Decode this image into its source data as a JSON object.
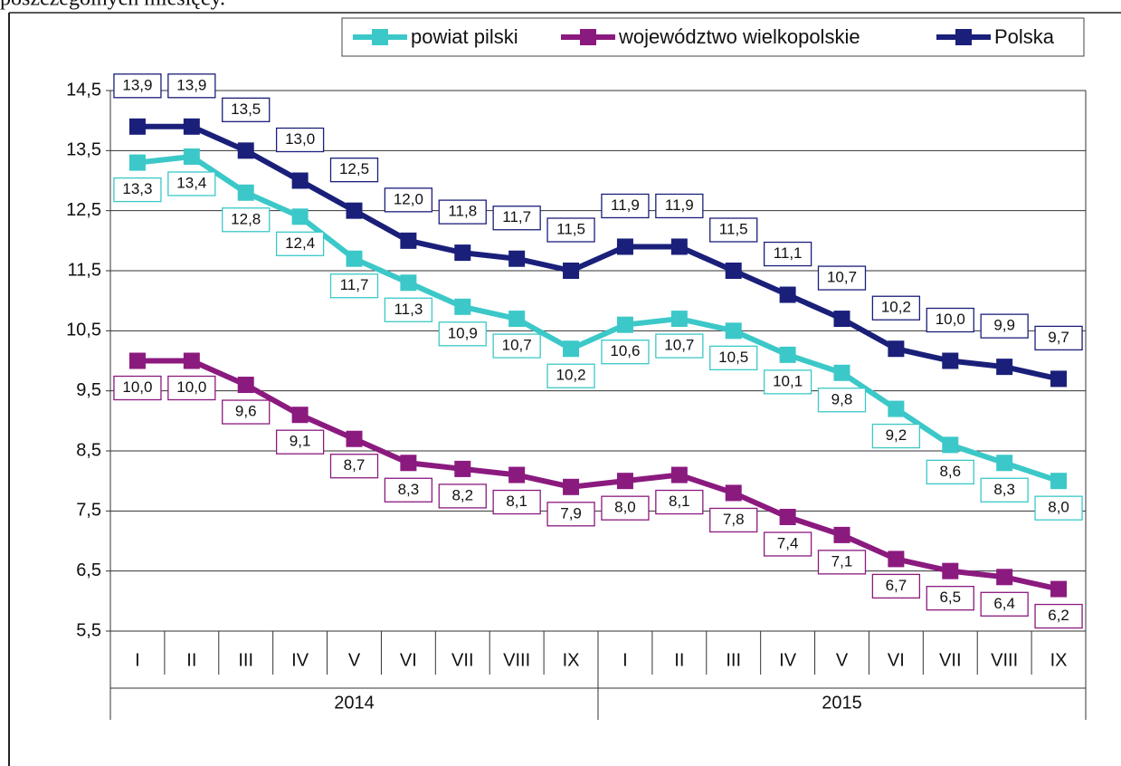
{
  "top_text": "poszczególnych miesięcy.",
  "chart_data": {
    "type": "line",
    "categories": [
      "I",
      "II",
      "III",
      "IV",
      "V",
      "VI",
      "VII",
      "VIII",
      "IX",
      "I",
      "II",
      "III",
      "IV",
      "V",
      "VI",
      "VII",
      "VIII",
      "IX"
    ],
    "groups": [
      "2014",
      "2015"
    ],
    "ylim": [
      5.5,
      14.5
    ],
    "yticks": [
      {
        "value": 5.5,
        "label": "5,5"
      },
      {
        "value": 6.5,
        "label": "6,5"
      },
      {
        "value": 7.5,
        "label": "7,5"
      },
      {
        "value": 8.5,
        "label": "8,5"
      },
      {
        "value": 9.5,
        "label": "9,5"
      },
      {
        "value": 10.5,
        "label": "10,5"
      },
      {
        "value": 11.5,
        "label": "11,5"
      },
      {
        "value": 12.5,
        "label": "12,5"
      },
      {
        "value": 13.5,
        "label": "13,5"
      },
      {
        "value": 14.5,
        "label": "14,5"
      }
    ],
    "grid": true,
    "legend": "top-right",
    "series": [
      {
        "name": "powiat pilski",
        "color": "#3cc8c8",
        "label_side": "below",
        "values": [
          13.3,
          13.4,
          12.8,
          12.4,
          11.7,
          11.3,
          10.9,
          10.7,
          10.2,
          10.6,
          10.7,
          10.5,
          10.1,
          9.8,
          9.2,
          8.6,
          8.3,
          8.0
        ],
        "value_labels": [
          "13,3",
          "13,4",
          "12,8",
          "12,4",
          "11,7",
          "11,3",
          "10,9",
          "10,7",
          "10,2",
          "10,6",
          "10,7",
          "10,5",
          "10,1",
          "9,8",
          "9,2",
          "8,6",
          "8,3",
          "8,0"
        ]
      },
      {
        "name": "województwo wielkopolskie",
        "color": "#8b1a7f",
        "label_side": "below",
        "values": [
          10.0,
          10.0,
          9.6,
          9.1,
          8.7,
          8.3,
          8.2,
          8.1,
          7.9,
          8.0,
          8.1,
          7.8,
          7.4,
          7.1,
          6.7,
          6.5,
          6.4,
          6.2
        ],
        "value_labels": [
          "10,0",
          "10,0",
          "9,6",
          "9,1",
          "8,7",
          "8,3",
          "8,2",
          "8,1",
          "7,9",
          "8,0",
          "8,1",
          "7,8",
          "7,4",
          "7,1",
          "6,7",
          "6,5",
          "6,4",
          "6,2"
        ]
      },
      {
        "name": "Polska",
        "color": "#1a1f7a",
        "label_side": "above",
        "values": [
          13.9,
          13.9,
          13.5,
          13.0,
          12.5,
          12.0,
          11.8,
          11.7,
          11.5,
          11.9,
          11.9,
          11.5,
          11.1,
          10.7,
          10.2,
          10.0,
          9.9,
          9.7
        ],
        "value_labels": [
          "13,9",
          "13,9",
          "13,5",
          "13,0",
          "12,5",
          "12,0",
          "11,8",
          "11,7",
          "11,5",
          "11,9",
          "11,9",
          "11,5",
          "11,1",
          "10,7",
          "10,2",
          "10,0",
          "9,9",
          "9,7"
        ]
      }
    ]
  }
}
